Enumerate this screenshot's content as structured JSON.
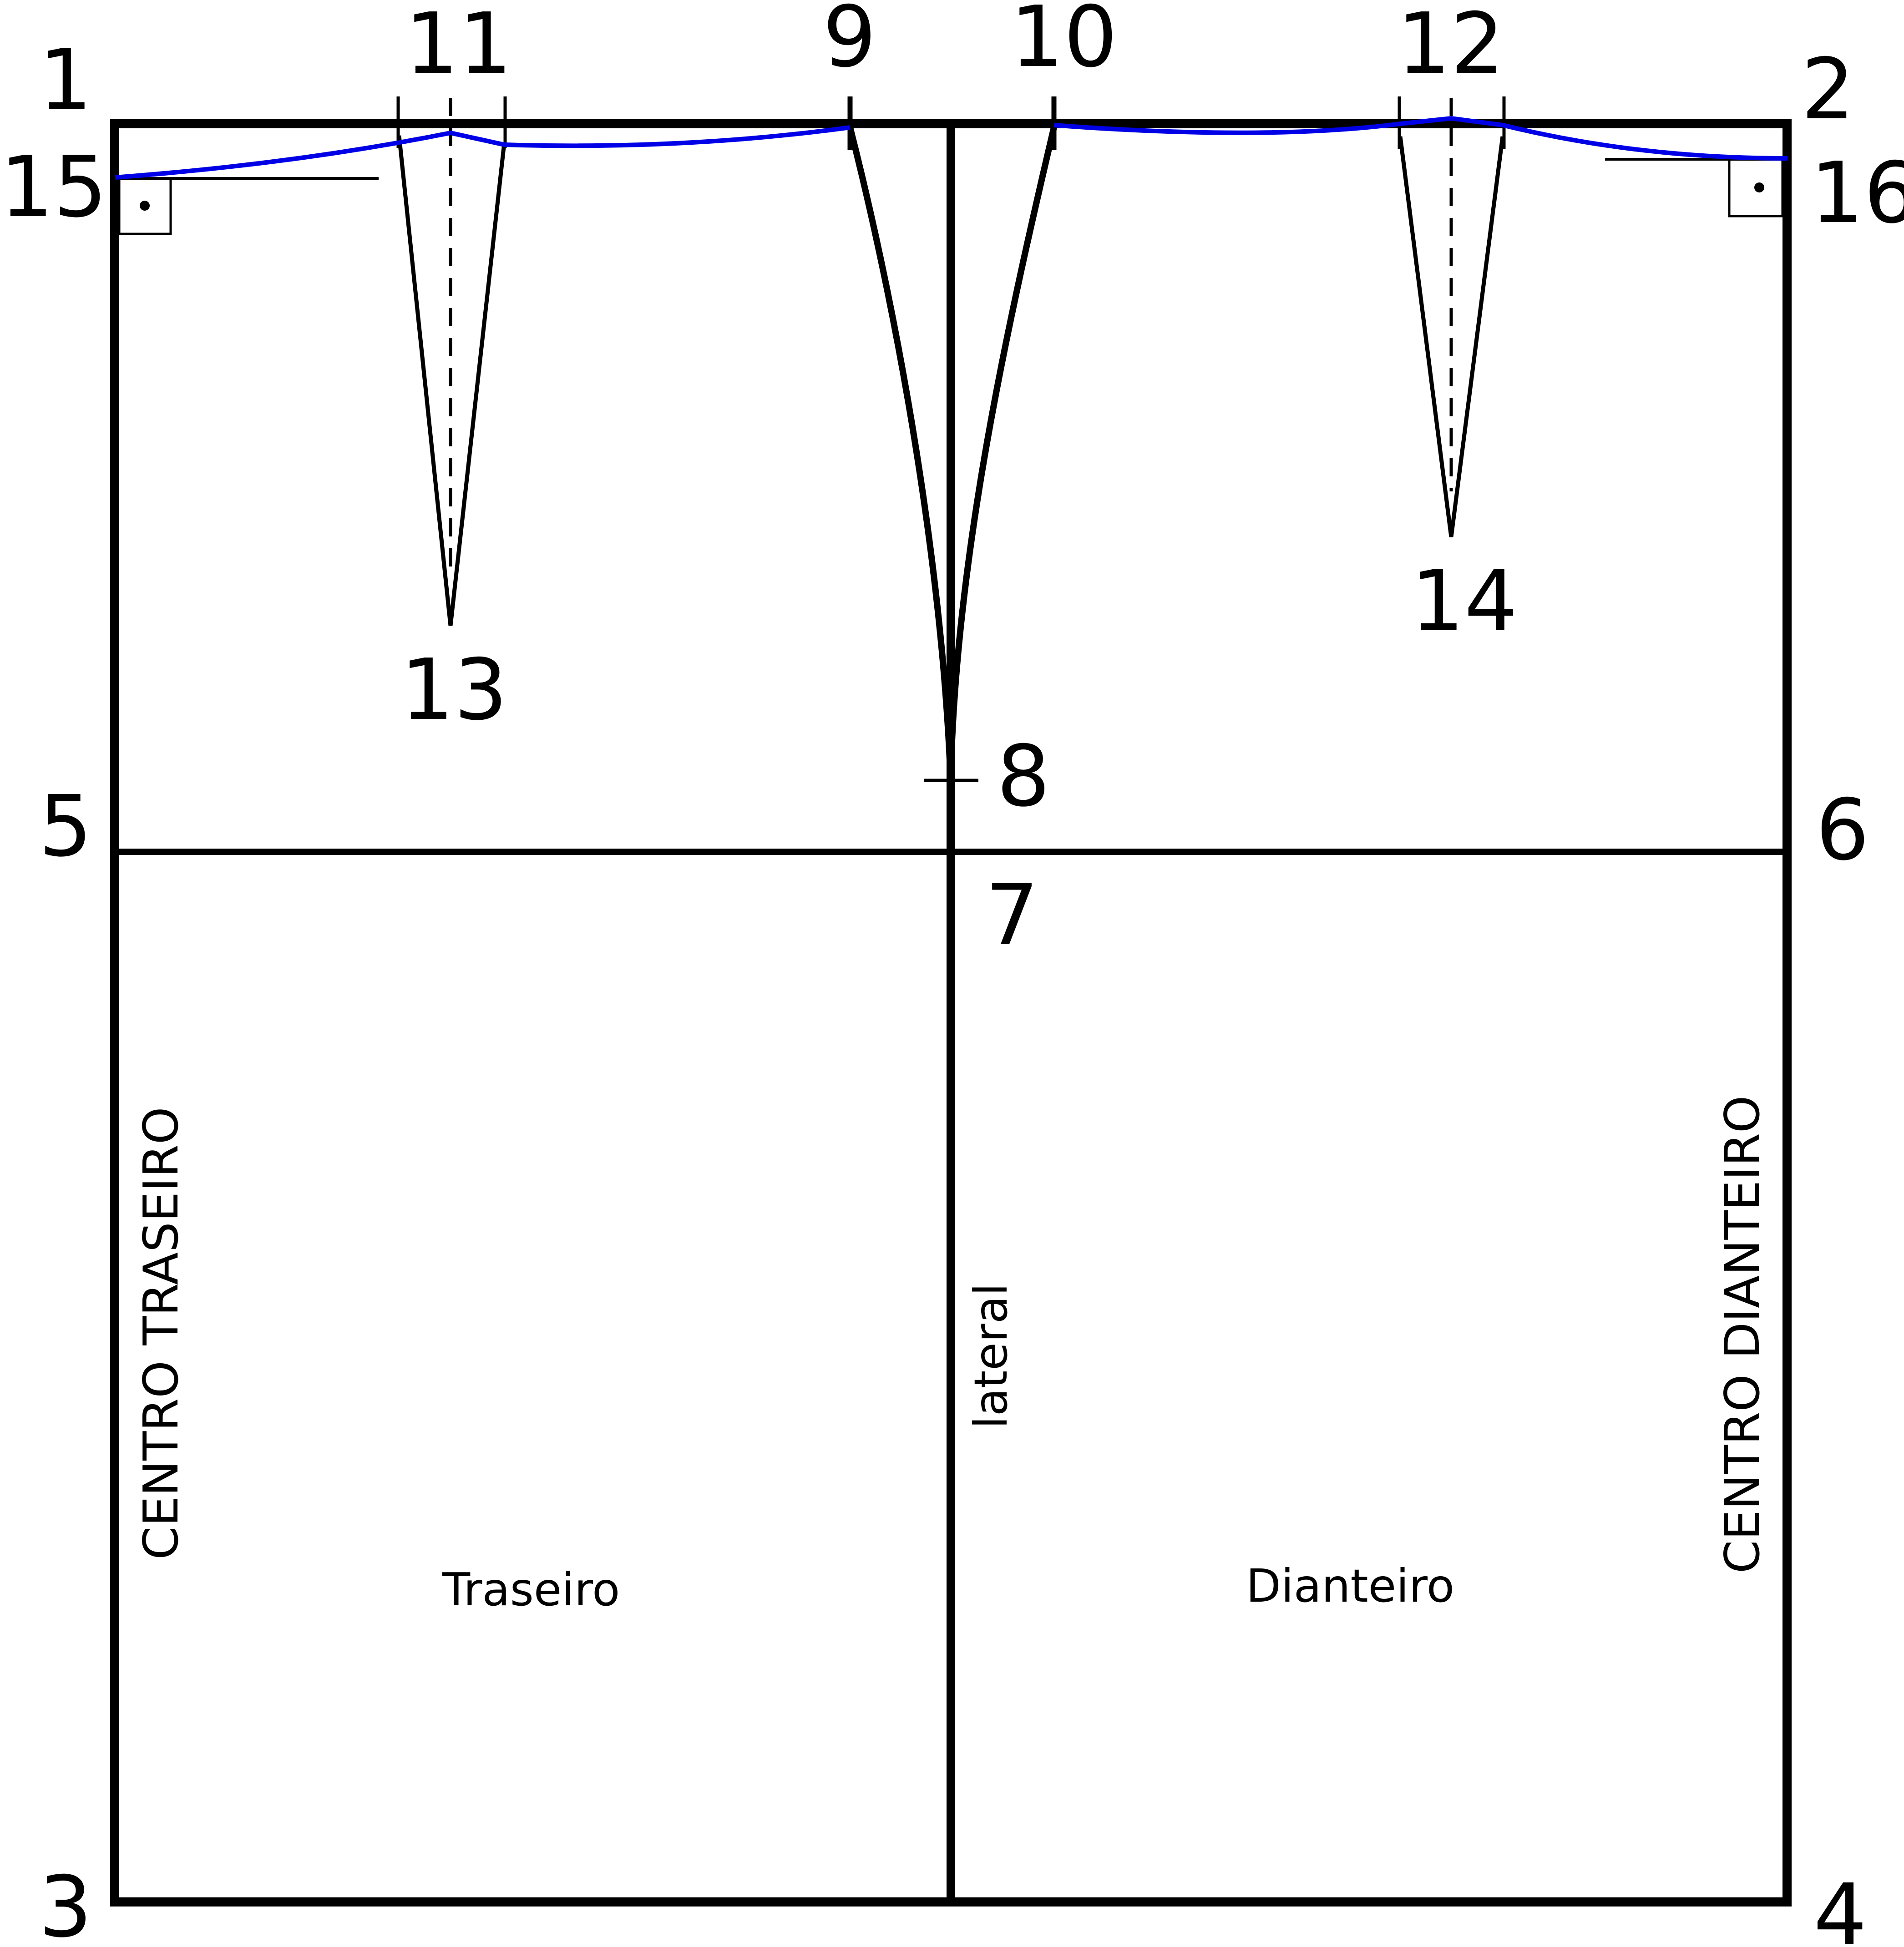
{
  "points": {
    "p1": "1",
    "p2": "2",
    "p3": "3",
    "p4": "4",
    "p5": "5",
    "p6": "6",
    "p7": "7",
    "p8": "8",
    "p9": "9",
    "p10": "10",
    "p11": "11",
    "p12": "12",
    "p13": "13",
    "p14": "14",
    "p15": "15",
    "p16": "16"
  },
  "labels": {
    "center_back": "CENTRO TRASEIRO",
    "center_front": "CENTRO DIANTEIRO",
    "side": "lateral",
    "back_panel": "Traseiro",
    "front_panel": "Dianteiro"
  },
  "colors": {
    "outline": "#000000",
    "waistline": "#0000e6"
  }
}
